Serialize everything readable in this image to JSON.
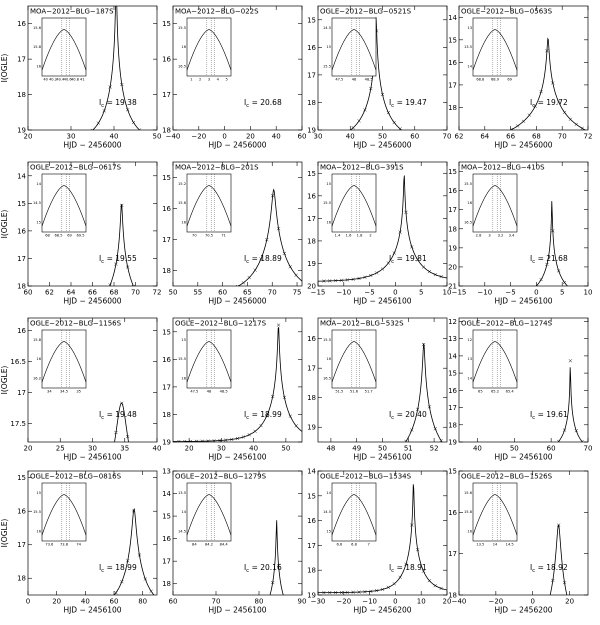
{
  "figure": {
    "ylabel": "I(OGLE)"
  },
  "chart_data": [
    {
      "type": "line",
      "title": "MOA−2012−BLG−187S",
      "xlabel": "HJD − 2456000",
      "xlim": [
        20,
        50
      ],
      "ylim": [
        19,
        15.5
      ],
      "xticks": [
        "20",
        "30",
        "40",
        "50"
      ],
      "yticks": [
        "16",
        "17",
        "18",
        "19"
      ],
      "model": {
        "t0": 40.5,
        "u0": 0.012,
        "tE": 6.0,
        "Is": 19.38,
        "fs": 1.0
      },
      "ic_value": "I",
      "ic_sub": "c",
      "ic_text": "= 19.38",
      "inset": {
        "xticks": [
          "40",
          "40.2",
          "40.4",
          "40.6",
          "40.8",
          "41"
        ],
        "yticks": [
          "15.6",
          "15.8",
          "16"
        ]
      }
    },
    {
      "type": "line",
      "title": "MOA−2012−BLG−022S",
      "xlabel": "HJD − 2456000",
      "xlim": [
        -40,
        60
      ],
      "ylim": [
        18,
        14.5
      ],
      "xticks": [
        "−40",
        "−20",
        "0",
        "20",
        "40",
        "60"
      ],
      "yticks": [
        "15",
        "16",
        "17",
        "18"
      ],
      "model": {
        "t0": 25.0,
        "u0": 0.3,
        "tE": 60.0,
        "Is": 20.68,
        "fs": 0.2
      },
      "ic_value": "I",
      "ic_sub": "c",
      "ic_text": "= 20.68",
      "inset": {
        "xticks": [
          "1",
          "2",
          "3",
          "4",
          "5"
        ],
        "yticks": [
          "15.5",
          "16",
          "16.5"
        ]
      }
    },
    {
      "type": "line",
      "title": "OGLE−2012−BLG−0521S",
      "xlabel": "HJD − 2456000",
      "xlim": [
        30,
        70
      ],
      "ylim": [
        19,
        14.5
      ],
      "xticks": [
        "30",
        "40",
        "50",
        "60",
        "70"
      ],
      "yticks": [
        "15",
        "16",
        "17",
        "18",
        "19"
      ],
      "model": {
        "t0": 48.0,
        "u0": 0.015,
        "tE": 10.0,
        "Is": 19.47,
        "fs": 1.0
      },
      "ic_value": "I",
      "ic_sub": "c",
      "ic_text": "= 19.47",
      "inset": {
        "xticks": [
          "47.5",
          "48",
          "48.5"
        ],
        "yticks": [
          "14.5",
          "15",
          "15.5"
        ]
      }
    },
    {
      "type": "line",
      "title": "OGLE−2012−BLG−0563S",
      "xlabel": "HJD − 2456000",
      "xlim": [
        62,
        72
      ],
      "ylim": [
        19,
        13.5
      ],
      "xticks": [
        "62",
        "64",
        "66",
        "68",
        "70",
        "72"
      ],
      "yticks": [
        "13",
        "14",
        "15",
        "16",
        "17",
        "18"
      ],
      "model": {
        "t0": 68.9,
        "u0": 0.012,
        "tE": 5.0,
        "Is": 19.72,
        "fs": 1.0
      },
      "ic_value": "I",
      "ic_sub": "c",
      "ic_text": "= 19.72",
      "inset": {
        "xticks": [
          "68.8",
          "68.9",
          "69"
        ],
        "yticks": [
          "13",
          "13.5",
          "14"
        ]
      }
    },
    {
      "type": "line",
      "title": "OGLE−2012−BLG−0617S",
      "xlabel": "HJD − 2456000",
      "xlim": [
        60,
        72
      ],
      "ylim": [
        18,
        13.5
      ],
      "xticks": [
        "60",
        "62",
        "64",
        "66",
        "68",
        "70",
        "72"
      ],
      "yticks": [
        "14",
        "15",
        "16",
        "17",
        "18"
      ],
      "model": {
        "t0": 68.7,
        "u0": 0.015,
        "tE": 4.5,
        "Is": 19.55,
        "fs": 1.0
      },
      "ic_value": "I",
      "ic_sub": "c",
      "ic_text": "= 19.55",
      "inset": {
        "xticks": [
          "68",
          "68.5",
          "69",
          "69.5"
        ],
        "yticks": [
          "14",
          "14.5",
          "15"
        ]
      }
    },
    {
      "type": "line",
      "title": "MOA−2012−BLG−201S",
      "xlabel": "HJD − 2456000",
      "xlim": [
        50,
        76
      ],
      "ylim": [
        18.5,
        14.5
      ],
      "xticks": [
        "50",
        "55",
        "60",
        "65",
        "70",
        "75"
      ],
      "yticks": [
        "15",
        "16",
        "17",
        "18"
      ],
      "model": {
        "t0": 70.3,
        "u0": 0.04,
        "tE": 8.0,
        "Is": 18.89,
        "fs": 1.0
      },
      "ic_value": "I",
      "ic_sub": "c",
      "ic_text": "= 18.89",
      "inset": {
        "xticks": [
          "70",
          "70.5",
          "71"
        ],
        "yticks": [
          "15.2",
          "15.6",
          "16"
        ]
      }
    },
    {
      "type": "line",
      "title": "MOA−2012−BLG−391S",
      "xlabel": "HJD − 2456100",
      "xlim": [
        -15,
        10
      ],
      "ylim": [
        20,
        14.5
      ],
      "xticks": [
        "−15",
        "−10",
        "−5",
        "0",
        "5",
        "10"
      ],
      "yticks": [
        "15",
        "16",
        "17",
        "18",
        "19",
        "20"
      ],
      "model": {
        "t0": 1.7,
        "u0": 0.012,
        "tE": 6.0,
        "Is": 19.81,
        "fs": 1.0
      },
      "ic_value": "I",
      "ic_sub": "c",
      "ic_text": "= 19.81",
      "inset": {
        "xticks": [
          "1.4",
          "1.6",
          "1.8",
          "2"
        ],
        "yticks": [
          "15",
          "15.5",
          "16"
        ]
      }
    },
    {
      "type": "line",
      "title": "MOA−2012−BLG−410S",
      "xlabel": "HJD − 2456100",
      "xlim": [
        -15,
        10
      ],
      "ylim": [
        21,
        14.5
      ],
      "xticks": [
        "−15",
        "−10",
        "−5",
        "0",
        "5",
        "10"
      ],
      "yticks": [
        "15",
        "16",
        "17",
        "18",
        "19",
        "20",
        "21"
      ],
      "model": {
        "t0": 3.0,
        "u0": 0.008,
        "tE": 5.0,
        "Is": 21.68,
        "fs": 1.0
      },
      "ic_value": "I",
      "ic_sub": "c",
      "ic_text": "= 21.68",
      "inset": {
        "xticks": [
          "2.8",
          "3",
          "3.2",
          "3.4"
        ],
        "yticks": [
          "15.5",
          "16",
          "16.5"
        ]
      }
    },
    {
      "type": "line",
      "title": "OGLE−2012−BLG−1156S",
      "xlabel": "HJD − 2456100",
      "xlim": [
        20,
        40
      ],
      "ylim": [
        17.8,
        15.8
      ],
      "xticks": [
        "20",
        "25",
        "30",
        "35",
        "40"
      ],
      "yticks": [
        "16",
        "16.5",
        "17",
        "17.5"
      ],
      "model": {
        "t0": 34.5,
        "u0": 0.12,
        "tE": 6.0,
        "Is": 19.48,
        "fs": 1.0
      },
      "ic_value": "I",
      "ic_sub": "c",
      "ic_text": "= 19.48",
      "inset": {
        "xticks": [
          "34",
          "34.5",
          "35"
        ],
        "yticks": [
          "15.8",
          "16",
          "16.2"
        ]
      }
    },
    {
      "type": "line",
      "title": "OGLE−2012−BLG−1217S",
      "xlabel": "HJD − 2456100",
      "xlim": [
        15,
        55
      ],
      "ylim": [
        19,
        14.5
      ],
      "xticks": [
        "20",
        "30",
        "40",
        "50"
      ],
      "yticks": [
        "15",
        "16",
        "17",
        "18",
        "19"
      ],
      "model": {
        "t0": 47.7,
        "u0": 0.02,
        "tE": 8.0,
        "Is": 18.99,
        "fs": 1.0
      },
      "ic_value": "I",
      "ic_sub": "c",
      "ic_text": "= 18.99",
      "inset": {
        "xticks": [
          "47.5",
          "48",
          "48.5"
        ],
        "yticks": [
          "15",
          "15.5",
          "16"
        ]
      }
    },
    {
      "type": "line",
      "title": "MOA−2012−BLG−532S",
      "xlabel": "HJD − 2456100",
      "xlim": [
        47.5,
        52.5
      ],
      "ylim": [
        19.5,
        15.3
      ],
      "xticks": [
        "48",
        "49",
        "50",
        "51",
        "52"
      ],
      "yticks": [
        "16",
        "17",
        "18",
        "19"
      ],
      "model": {
        "t0": 51.6,
        "u0": 0.02,
        "tE": 1.5,
        "Is": 20.4,
        "fs": 1.0
      },
      "ic_value": "I",
      "ic_sub": "c",
      "ic_text": "= 20.40",
      "inset": {
        "xticks": [
          "51.5",
          "51.6",
          "51.7"
        ],
        "yticks": [
          "15.5",
          "16",
          "16.5"
        ]
      }
    },
    {
      "type": "line",
      "title": "OGLE−2012−BLG−1274S",
      "xlabel": "HJD − 2456100",
      "xlim": [
        35,
        70
      ],
      "ylim": [
        19,
        11.8
      ],
      "xticks": [
        "40",
        "50",
        "60",
        "70"
      ],
      "yticks": [
        "12",
        "13",
        "14",
        "15",
        "16",
        "17",
        "18",
        "19"
      ],
      "model": {
        "t0": 65.2,
        "u0": 0.005,
        "tE": 5.0,
        "Is": 19.61,
        "fs": 1.0
      },
      "ic_value": "I",
      "ic_sub": "c",
      "ic_text": "= 19.61",
      "inset": {
        "xticks": [
          "65",
          "65.2",
          "65.4"
        ],
        "yticks": [
          "12",
          "13",
          "14"
        ]
      }
    },
    {
      "type": "line",
      "title": "OGLE−2012−BLG−0816S",
      "xlabel": "HJD − 2456100",
      "xlim": [
        0,
        90
      ],
      "ylim": [
        18.5,
        14.8
      ],
      "xticks": [
        "0",
        "20",
        "40",
        "60",
        "80"
      ],
      "yticks": [
        "15",
        "16",
        "17",
        "18"
      ],
      "model": {
        "t0": 74.0,
        "u0": 0.06,
        "tE": 18.0,
        "Is": 18.99,
        "fs": 1.0
      },
      "ic_value": "I",
      "ic_sub": "c",
      "ic_text": "= 18.99",
      "inset": {
        "xticks": [
          "73.6",
          "73.8",
          "74"
        ],
        "yticks": [
          "15",
          "15.5",
          "16"
        ]
      }
    },
    {
      "type": "line",
      "title": "OGLE−2012−BLG−1279S",
      "xlabel": "HJD − 2456100",
      "xlim": [
        60,
        90
      ],
      "ylim": [
        18.5,
        13
      ],
      "xticks": [
        "60",
        "70",
        "80",
        "90"
      ],
      "yticks": [
        "13",
        "14",
        "15",
        "16",
        "17",
        "18"
      ],
      "model": {
        "t0": 84.1,
        "u0": 0.01,
        "tE": 7.0,
        "Is": 20.16,
        "fs": 1.0
      },
      "ic_value": "I",
      "ic_sub": "c",
      "ic_text": "= 20.16",
      "inset": {
        "xticks": [
          "84",
          "84.2",
          "84.4"
        ],
        "yticks": [
          "13.5",
          "14",
          "14.5"
        ]
      }
    },
    {
      "type": "line",
      "title": "OGLE−2012−BLG−1534S",
      "xlabel": "HJD − 2456200",
      "xlim": [
        -30,
        20
      ],
      "ylim": [
        19,
        14
      ],
      "xticks": [
        "−30",
        "−20",
        "−10",
        "0",
        "10",
        "20"
      ],
      "yticks": [
        "14",
        "15",
        "16",
        "17",
        "18",
        "19"
      ],
      "model": {
        "t0": 7.0,
        "u0": 0.015,
        "tE": 8.0,
        "Is": 18.91,
        "fs": 1.0
      },
      "ic_value": "I",
      "ic_sub": "c",
      "ic_text": "= 18.91",
      "inset": {
        "xticks": [
          "6.6",
          "6.8",
          "7"
        ],
        "yticks": [
          "14",
          "14.5",
          "15"
        ]
      }
    },
    {
      "type": "line",
      "title": "OGLE−2012−BLG−1526S",
      "xlabel": "HJD − 2456200",
      "xlim": [
        -40,
        30
      ],
      "ylim": [
        18,
        15
      ],
      "xticks": [
        "−40",
        "−20",
        "0",
        "20"
      ],
      "yticks": [
        "15",
        "16",
        "17",
        "18"
      ],
      "model": {
        "t0": 14.0,
        "u0": 0.09,
        "tE": 10.0,
        "Is": 18.92,
        "fs": 1.0
      },
      "ic_value": "I",
      "ic_sub": "c",
      "ic_text": "= 18.92",
      "inset": {
        "xticks": [
          "13.5",
          "14",
          "14.5"
        ],
        "yticks": [
          "15.6",
          "15.8",
          "16"
        ]
      }
    }
  ]
}
